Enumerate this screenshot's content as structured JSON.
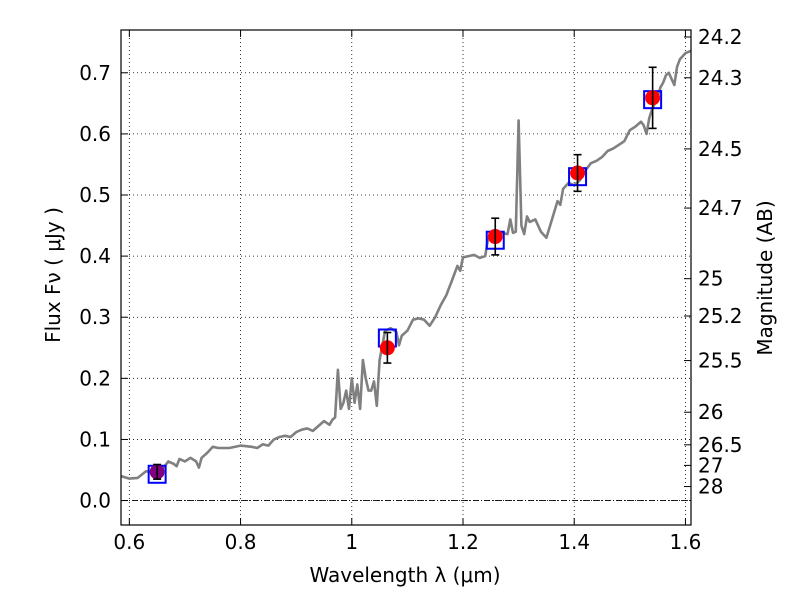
{
  "chart_data": {
    "type": "scatter",
    "title": "",
    "xlabel": "Wavelength  λ (μm)",
    "ylabel": "Flux  Fν  ( μJy )",
    "y2label": "Magnitude (AB)",
    "xlim": [
      0.585,
      1.61
    ],
    "ylim": [
      -0.04,
      0.77
    ],
    "grid": true,
    "x_ticks": [
      0.6,
      0.8,
      1.0,
      1.2,
      1.4,
      1.6
    ],
    "x_tick_labels": [
      "0.6",
      "0.8",
      "1",
      "1.2",
      "1.4",
      "1.6"
    ],
    "y_ticks": [
      0.0,
      0.1,
      0.2,
      0.3,
      0.4,
      0.5,
      0.6,
      0.7
    ],
    "y_tick_labels": [
      "0.0",
      "0.1",
      "0.2",
      "0.3",
      "0.4",
      "0.5",
      "0.6",
      "0.7"
    ],
    "mag_ticks": [
      {
        "mag": 24.2,
        "label": "24.2"
      },
      {
        "mag": 24.3,
        "label": "24.3"
      },
      {
        "mag": 24.5,
        "label": "24.5"
      },
      {
        "mag": 24.7,
        "label": "24.7"
      },
      {
        "mag": 25.0,
        "label": "25"
      },
      {
        "mag": 25.2,
        "label": "25.2"
      },
      {
        "mag": 25.5,
        "label": "25.5"
      },
      {
        "mag": 26.0,
        "label": "26"
      },
      {
        "mag": 26.5,
        "label": "26.5"
      },
      {
        "mag": 27.0,
        "label": "27"
      },
      {
        "mag": 28.0,
        "label": "28"
      }
    ],
    "series": [
      {
        "kind": "model-spectrum",
        "color": "#808080",
        "points": [
          [
            0.585,
            0.04
          ],
          [
            0.6,
            0.036
          ],
          [
            0.615,
            0.037
          ],
          [
            0.63,
            0.048
          ],
          [
            0.645,
            0.046
          ],
          [
            0.66,
            0.052
          ],
          [
            0.67,
            0.064
          ],
          [
            0.68,
            0.06
          ],
          [
            0.685,
            0.056
          ],
          [
            0.69,
            0.068
          ],
          [
            0.7,
            0.064
          ],
          [
            0.71,
            0.07
          ],
          [
            0.72,
            0.064
          ],
          [
            0.725,
            0.054
          ],
          [
            0.73,
            0.07
          ],
          [
            0.74,
            0.078
          ],
          [
            0.75,
            0.088
          ],
          [
            0.76,
            0.086
          ],
          [
            0.78,
            0.086
          ],
          [
            0.8,
            0.09
          ],
          [
            0.82,
            0.088
          ],
          [
            0.83,
            0.086
          ],
          [
            0.84,
            0.092
          ],
          [
            0.85,
            0.09
          ],
          [
            0.86,
            0.1
          ],
          [
            0.87,
            0.104
          ],
          [
            0.88,
            0.106
          ],
          [
            0.89,
            0.104
          ],
          [
            0.9,
            0.112
          ],
          [
            0.91,
            0.116
          ],
          [
            0.92,
            0.118
          ],
          [
            0.93,
            0.114
          ],
          [
            0.94,
            0.122
          ],
          [
            0.95,
            0.13
          ],
          [
            0.96,
            0.124
          ],
          [
            0.965,
            0.132
          ],
          [
            0.97,
            0.136
          ],
          [
            0.975,
            0.214
          ],
          [
            0.98,
            0.15
          ],
          [
            0.985,
            0.16
          ],
          [
            0.99,
            0.18
          ],
          [
            0.995,
            0.15
          ],
          [
            1.0,
            0.2
          ],
          [
            1.005,
            0.16
          ],
          [
            1.01,
            0.19
          ],
          [
            1.015,
            0.15
          ],
          [
            1.02,
            0.23
          ],
          [
            1.025,
            0.2
          ],
          [
            1.03,
            0.18
          ],
          [
            1.035,
            0.18
          ],
          [
            1.04,
            0.195
          ],
          [
            1.045,
            0.155
          ],
          [
            1.05,
            0.23
          ],
          [
            1.06,
            0.278
          ],
          [
            1.07,
            0.282
          ],
          [
            1.08,
            0.276
          ],
          [
            1.085,
            0.254
          ],
          [
            1.09,
            0.27
          ],
          [
            1.1,
            0.278
          ],
          [
            1.11,
            0.296
          ],
          [
            1.12,
            0.298
          ],
          [
            1.13,
            0.296
          ],
          [
            1.14,
            0.286
          ],
          [
            1.15,
            0.3
          ],
          [
            1.16,
            0.32
          ],
          [
            1.17,
            0.336
          ],
          [
            1.18,
            0.36
          ],
          [
            1.19,
            0.384
          ],
          [
            1.195,
            0.376
          ],
          [
            1.2,
            0.398
          ],
          [
            1.21,
            0.4
          ],
          [
            1.22,
            0.402
          ],
          [
            1.23,
            0.397
          ],
          [
            1.24,
            0.4
          ],
          [
            1.245,
            0.428
          ],
          [
            1.25,
            0.434
          ],
          [
            1.26,
            0.436
          ],
          [
            1.27,
            0.438
          ],
          [
            1.28,
            0.436
          ],
          [
            1.285,
            0.46
          ],
          [
            1.29,
            0.438
          ],
          [
            1.295,
            0.44
          ],
          [
            1.3,
            0.622
          ],
          [
            1.305,
            0.45
          ],
          [
            1.31,
            0.436
          ],
          [
            1.315,
            0.465
          ],
          [
            1.32,
            0.456
          ],
          [
            1.33,
            0.46
          ],
          [
            1.34,
            0.44
          ],
          [
            1.35,
            0.43
          ],
          [
            1.36,
            0.46
          ],
          [
            1.37,
            0.49
          ],
          [
            1.375,
            0.484
          ],
          [
            1.38,
            0.51
          ],
          [
            1.39,
            0.52
          ],
          [
            1.4,
            0.516
          ],
          [
            1.41,
            0.524
          ],
          [
            1.42,
            0.54
          ],
          [
            1.43,
            0.552
          ],
          [
            1.44,
            0.556
          ],
          [
            1.45,
            0.562
          ],
          [
            1.46,
            0.572
          ],
          [
            1.47,
            0.576
          ],
          [
            1.48,
            0.582
          ],
          [
            1.49,
            0.588
          ],
          [
            1.5,
            0.606
          ],
          [
            1.51,
            0.612
          ],
          [
            1.515,
            0.616
          ],
          [
            1.52,
            0.62
          ],
          [
            1.525,
            0.614
          ],
          [
            1.53,
            0.6
          ],
          [
            1.535,
            0.626
          ],
          [
            1.54,
            0.64
          ],
          [
            1.55,
            0.66
          ],
          [
            1.555,
            0.676
          ],
          [
            1.56,
            0.684
          ],
          [
            1.565,
            0.696
          ],
          [
            1.57,
            0.7
          ],
          [
            1.575,
            0.69
          ],
          [
            1.58,
            0.68
          ],
          [
            1.585,
            0.71
          ],
          [
            1.59,
            0.722
          ],
          [
            1.6,
            0.732
          ],
          [
            1.61,
            0.736
          ]
        ]
      },
      {
        "kind": "model-photometry",
        "marker": "square",
        "edgecolor": "#0000ff",
        "points": [
          {
            "x": 0.65,
            "y": 0.043
          },
          {
            "x": 1.064,
            "y": 0.266
          },
          {
            "x": 1.258,
            "y": 0.426
          },
          {
            "x": 1.406,
            "y": 0.53
          },
          {
            "x": 1.541,
            "y": 0.656
          }
        ]
      },
      {
        "kind": "observed-photometry",
        "marker": "circle",
        "color": "#ff0000",
        "points": [
          {
            "x": 0.65,
            "y": 0.047,
            "err": 0.012,
            "color": "#800080"
          },
          {
            "x": 1.064,
            "y": 0.25,
            "err": 0.025
          },
          {
            "x": 1.258,
            "y": 0.432,
            "err": 0.03
          },
          {
            "x": 1.406,
            "y": 0.536,
            "err": 0.03
          },
          {
            "x": 1.541,
            "y": 0.659,
            "err": 0.05
          }
        ]
      }
    ]
  }
}
